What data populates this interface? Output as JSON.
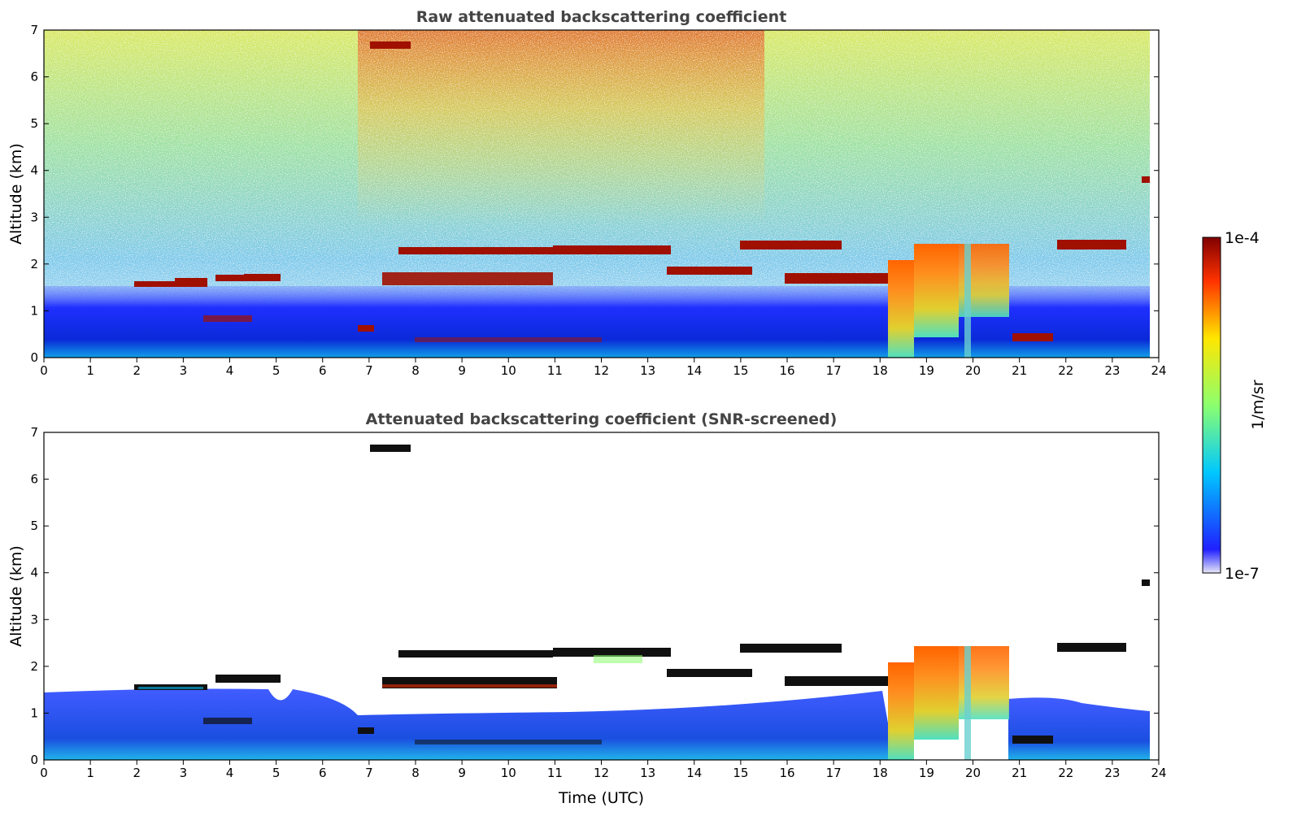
{
  "chart_data": [
    {
      "type": "heatmap",
      "title": "Raw attenuated backscattering coefficient",
      "xlabel": "",
      "ylabel": "Altitude (km)",
      "xlim": [
        0,
        24
      ],
      "ylim": [
        0,
        7
      ],
      "x_ticks": [
        "0",
        "1",
        "2",
        "3",
        "4",
        "5",
        "6",
        "7",
        "8",
        "9",
        "10",
        "11",
        "12",
        "13",
        "14",
        "15",
        "16",
        "17",
        "18",
        "19",
        "20",
        "21",
        "22",
        "23",
        "24"
      ],
      "y_ticks": [
        "0",
        "1",
        "2",
        "3",
        "4",
        "5",
        "6",
        "7"
      ],
      "grid": false,
      "features": [
        {
          "kind": "noise_background",
          "x": [
            0,
            23.8
          ],
          "y": [
            1.5,
            7
          ],
          "level": "low-mid"
        },
        {
          "kind": "boundary_layer",
          "x": [
            0,
            23.8
          ],
          "y": [
            0,
            1.3
          ],
          "level": "low"
        },
        {
          "kind": "cloud_layer",
          "x": [
            2,
            5
          ],
          "y": [
            1.5,
            1.8
          ],
          "level": "high"
        },
        {
          "kind": "cloud_layer",
          "x": [
            7.3,
            13.5
          ],
          "y": [
            1.5,
            2.4
          ],
          "level": "high"
        },
        {
          "kind": "cloud_layer",
          "x": [
            13.3,
            17
          ],
          "y": [
            1.8,
            2.5
          ],
          "level": "high"
        },
        {
          "kind": "precipitation",
          "x": [
            18.2,
            20.8
          ],
          "y": [
            0,
            2.6
          ],
          "level": "mid-high"
        },
        {
          "kind": "cloud_layer",
          "x": [
            21.8,
            23.5
          ],
          "y": [
            2.2,
            2.6
          ],
          "level": "high"
        },
        {
          "kind": "elevated_layer",
          "x": [
            7,
            7.9
          ],
          "y": [
            6.5,
            6.75
          ],
          "level": "high"
        },
        {
          "kind": "elevated_layer",
          "x": [
            23.6,
            23.8
          ],
          "y": [
            3.7,
            3.85
          ],
          "level": "high"
        }
      ]
    },
    {
      "type": "heatmap",
      "title": "Attenuated backscattering coefficient (SNR-screened)",
      "xlabel": "Time (UTC)",
      "ylabel": "Altitude (km)",
      "xlim": [
        0,
        24
      ],
      "ylim": [
        0,
        7
      ],
      "x_ticks": [
        "0",
        "1",
        "2",
        "3",
        "4",
        "5",
        "6",
        "7",
        "8",
        "9",
        "10",
        "11",
        "12",
        "13",
        "14",
        "15",
        "16",
        "17",
        "18",
        "19",
        "20",
        "21",
        "22",
        "23",
        "24"
      ],
      "y_ticks": [
        "0",
        "1",
        "2",
        "3",
        "4",
        "5",
        "6",
        "7"
      ],
      "grid": false,
      "features": [
        {
          "kind": "boundary_layer",
          "x": [
            0,
            23.8
          ],
          "y": [
            0,
            1.4
          ],
          "level": "low"
        },
        {
          "kind": "cloud_layer",
          "x": [
            2,
            5
          ],
          "y": [
            1.5,
            1.8
          ],
          "level": "high"
        },
        {
          "kind": "cloud_layer",
          "x": [
            7.3,
            13.5
          ],
          "y": [
            1.5,
            2.4
          ],
          "level": "high"
        },
        {
          "kind": "cloud_layer",
          "x": [
            13.3,
            17
          ],
          "y": [
            1.8,
            2.5
          ],
          "level": "high"
        },
        {
          "kind": "precipitation",
          "x": [
            18.2,
            20.8
          ],
          "y": [
            0,
            2.6
          ],
          "level": "mid-high"
        },
        {
          "kind": "cloud_layer",
          "x": [
            21.8,
            23.5
          ],
          "y": [
            2.2,
            2.6
          ],
          "level": "high"
        },
        {
          "kind": "elevated_layer",
          "x": [
            7,
            7.9
          ],
          "y": [
            6.5,
            6.75
          ],
          "level": "high"
        }
      ]
    }
  ],
  "colorbar": {
    "label": "1/m/sr",
    "min_label": "1e-7",
    "max_label": "1e-4",
    "min": 1e-07,
    "max": 0.0001,
    "scale": "log",
    "colormap": "jet",
    "colors": [
      "#e8e8f8",
      "#0000ff",
      "#00c8ff",
      "#8cff6e",
      "#ffe600",
      "#ff3200",
      "#800000"
    ]
  }
}
